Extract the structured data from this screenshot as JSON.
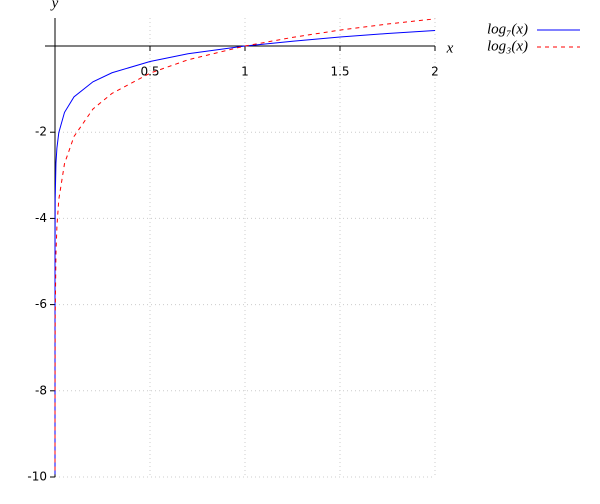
{
  "chart_data": {
    "type": "line",
    "x_label": "x",
    "y_label": "y",
    "x": [
      4e-09,
      1e-07,
      2e-06,
      2e-05,
      0.0001,
      0.001,
      0.005,
      0.01,
      0.02,
      0.05,
      0.1,
      0.2,
      0.3,
      0.5,
      0.7,
      1,
      1.25,
      1.5,
      1.75,
      2
    ],
    "series": [
      {
        "name": "log₇(x)",
        "color": "#0000ff",
        "dash": false,
        "values": [
          -9.94,
          -8.28,
          -6.74,
          -5.56,
          -4.73,
          -3.55,
          -2.72,
          -2.37,
          -2.01,
          -1.54,
          -1.18,
          -0.83,
          -0.62,
          -0.36,
          -0.18,
          0,
          0.11,
          0.21,
          0.29,
          0.36
        ]
      },
      {
        "name": "log₃(x)",
        "color": "#ff0000",
        "dash": true,
        "values": [
          null,
          null,
          null,
          -9.85,
          -8.38,
          -6.29,
          -4.82,
          -4.19,
          -3.56,
          -2.73,
          -2.1,
          -1.46,
          -1.1,
          -0.63,
          -0.32,
          0,
          0.2,
          0.37,
          0.51,
          0.63
        ]
      }
    ],
    "xlim": [
      0,
      2
    ],
    "ylim": [
      -10,
      0.65
    ],
    "xticks": [
      0.5,
      1,
      1.5,
      2
    ],
    "yticks": [
      -2,
      -4,
      -6,
      -8,
      -10
    ],
    "grid": true,
    "legend": "top-right"
  }
}
